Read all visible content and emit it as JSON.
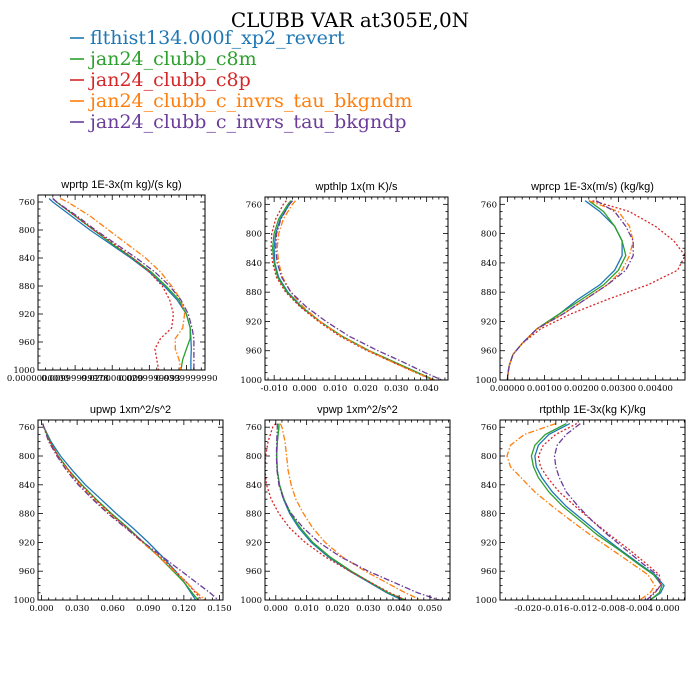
{
  "figure": {
    "title": "CLUBB VAR at305E,0N",
    "legend": [
      {
        "label": "flthist134.000f_xp2_revert",
        "color": "#1f77b4",
        "dash": "solid"
      },
      {
        "label": "jan24_clubb_c8m",
        "color": "#2ca02c",
        "dash": "solid"
      },
      {
        "label": "jan24_clubb_c8p",
        "color": "#d62728",
        "dash": "dotted"
      },
      {
        "label": "jan24_clubb_c_invrs_tau_bkgndm",
        "color": "#ff7f0e",
        "dash": "dashdot"
      },
      {
        "label": "jan24_clubb_c_invrs_tau_bkgndp",
        "color": "#6a3d9a",
        "dash": "dashdot"
      }
    ]
  },
  "chart_data": [
    {
      "type": "line",
      "title": "wprtp   1E-3x(m kg)/(s kg)",
      "xlim": [
        0.0,
        0.045
      ],
      "ylim": [
        750,
        1000
      ],
      "y_inverted": true,
      "xtick_values": [
        0.0,
        0.01,
        0.02,
        0.03,
        0.04
      ],
      "xtick_labels": [
        "0.0000000000",
        "0.00999999978",
        "0.0200000000",
        "0.0299999993",
        "0.0399999990"
      ],
      "ytick_values": [
        760,
        800,
        840,
        880,
        920,
        960,
        1000
      ],
      "ytick_labels": [
        "760",
        "800",
        "840",
        "880",
        "920",
        "960",
        "1000"
      ],
      "y": [
        755,
        760,
        780,
        800,
        820,
        840,
        860,
        880,
        900,
        920,
        940,
        955,
        970,
        985,
        1000
      ],
      "series": [
        {
          "values": [
            0.003,
            0.004,
            0.009,
            0.014,
            0.0195,
            0.025,
            0.03,
            0.034,
            0.0375,
            0.04,
            0.041,
            0.0412,
            0.0413,
            0.0412,
            0.0412
          ]
        },
        {
          "values": [
            0.004,
            0.005,
            0.01,
            0.015,
            0.02,
            0.0255,
            0.0305,
            0.0345,
            0.038,
            0.04,
            0.041,
            0.041,
            0.04,
            0.039,
            0.0385
          ]
        },
        {
          "values": [
            0.004,
            0.005,
            0.01,
            0.015,
            0.0205,
            0.0255,
            0.03,
            0.0335,
            0.0355,
            0.0365,
            0.036,
            0.033,
            0.0315,
            0.032,
            0.0325
          ]
        },
        {
          "values": [
            0.006,
            0.008,
            0.014,
            0.019,
            0.024,
            0.029,
            0.033,
            0.036,
            0.0385,
            0.0395,
            0.039,
            0.037,
            0.037,
            0.038,
            0.0385
          ]
        },
        {
          "values": [
            0.004,
            0.005,
            0.0105,
            0.0155,
            0.021,
            0.0265,
            0.0315,
            0.0355,
            0.0385,
            0.0405,
            0.0415,
            0.042,
            0.042,
            0.042,
            0.042
          ]
        }
      ]
    },
    {
      "type": "line",
      "title": "wpthlp   1x(m K)/s",
      "xlim": [
        -0.013,
        0.047
      ],
      "ylim": [
        750,
        1000
      ],
      "y_inverted": true,
      "xtick_values": [
        -0.01,
        0.0,
        0.01,
        0.02,
        0.03,
        0.04
      ],
      "xtick_labels": [
        "-0.010",
        "0.000",
        "0.010",
        "0.020",
        "0.030",
        "0.040"
      ],
      "ytick_values": [
        760,
        800,
        840,
        880,
        920,
        960,
        1000
      ],
      "ytick_labels": [
        "760",
        "800",
        "840",
        "880",
        "920",
        "960",
        "1000"
      ],
      "y": [
        755,
        760,
        780,
        800,
        820,
        840,
        860,
        880,
        900,
        920,
        940,
        960,
        975,
        990,
        1000
      ],
      "series": [
        {
          "values": [
            -0.004,
            -0.005,
            -0.008,
            -0.0095,
            -0.01,
            -0.0098,
            -0.0085,
            -0.0055,
            -0.001,
            0.005,
            0.012,
            0.021,
            0.029,
            0.037,
            0.042
          ]
        },
        {
          "values": [
            -0.0045,
            -0.0055,
            -0.0085,
            -0.01,
            -0.0105,
            -0.01,
            -0.0088,
            -0.0058,
            -0.0012,
            0.005,
            0.0122,
            0.0212,
            0.0292,
            0.0372,
            0.0425
          ]
        },
        {
          "values": [
            -0.006,
            -0.007,
            -0.0095,
            -0.0108,
            -0.011,
            -0.0105,
            -0.0092,
            -0.0062,
            -0.0015,
            0.0045,
            0.0115,
            0.0205,
            0.0285,
            0.0365,
            0.042
          ]
        },
        {
          "values": [
            -0.003,
            -0.004,
            -0.007,
            -0.0085,
            -0.009,
            -0.0085,
            -0.0072,
            -0.0045,
            -0.0005,
            0.005,
            0.012,
            0.021,
            0.0285,
            0.0365,
            0.0425
          ]
        },
        {
          "values": [
            -0.004,
            -0.005,
            -0.0078,
            -0.0092,
            -0.0095,
            -0.009,
            -0.0075,
            -0.0045,
            0.0005,
            0.007,
            0.0145,
            0.024,
            0.032,
            0.0395,
            0.045
          ]
        }
      ]
    },
    {
      "type": "line",
      "title": "wprcp   1E-3x(m/s) (kg/kg)",
      "xlim": [
        -0.0002,
        0.0048
      ],
      "ylim": [
        750,
        1000
      ],
      "y_inverted": true,
      "xtick_values": [
        0.0,
        0.001,
        0.002,
        0.003,
        0.004
      ],
      "xtick_labels": [
        "0.00000",
        "0.00100",
        "0.00200",
        "0.00300",
        "0.00400"
      ],
      "ytick_values": [
        760,
        800,
        840,
        880,
        920,
        960,
        1000
      ],
      "ytick_labels": [
        "760",
        "800",
        "840",
        "880",
        "920",
        "960",
        "1000"
      ],
      "y": [
        755,
        770,
        790,
        810,
        830,
        850,
        870,
        890,
        910,
        930,
        950,
        965,
        980,
        990,
        1000
      ],
      "series": [
        {
          "values": [
            0.0021,
            0.0025,
            0.0029,
            0.0031,
            0.0031,
            0.0029,
            0.0025,
            0.0019,
            0.0014,
            0.0008,
            0.0004,
            0.00015,
            5e-05,
            2e-05,
            0.0
          ]
        },
        {
          "values": [
            0.0022,
            0.0026,
            0.0029,
            0.0031,
            0.0032,
            0.003,
            0.0026,
            0.002,
            0.0014,
            0.0008,
            0.0004,
            0.00015,
            5e-05,
            2e-05,
            0.0
          ]
        },
        {
          "values": [
            0.0023,
            0.0033,
            0.004,
            0.0045,
            0.0048,
            0.0046,
            0.0038,
            0.0027,
            0.0017,
            0.0009,
            0.0004,
            0.00015,
            5e-05,
            2e-05,
            0.0
          ]
        },
        {
          "values": [
            0.0022,
            0.003,
            0.0033,
            0.0034,
            0.0033,
            0.0031,
            0.0027,
            0.0021,
            0.0015,
            0.0008,
            0.0004,
            0.00015,
            5e-05,
            2e-05,
            0.0
          ]
        },
        {
          "values": [
            0.0024,
            0.0029,
            0.0032,
            0.0034,
            0.0034,
            0.0032,
            0.0027,
            0.0021,
            0.0015,
            0.0008,
            0.0004,
            0.00015,
            5e-05,
            2e-05,
            0.0
          ]
        }
      ]
    },
    {
      "type": "line",
      "title": "upwp   1xm^2/s^2",
      "xlim": [
        -0.003,
        0.153
      ],
      "ylim": [
        750,
        1000
      ],
      "y_inverted": true,
      "xtick_values": [
        0.0,
        0.03,
        0.06,
        0.09,
        0.12,
        0.15
      ],
      "xtick_labels": [
        "0.000",
        "0.030",
        "0.060",
        "0.090",
        "0.120",
        "0.150"
      ],
      "ytick_values": [
        760,
        800,
        840,
        880,
        920,
        960,
        1000
      ],
      "ytick_labels": [
        "760",
        "800",
        "840",
        "880",
        "920",
        "960",
        "1000"
      ],
      "y": [
        755,
        760,
        780,
        800,
        820,
        840,
        860,
        880,
        900,
        920,
        940,
        960,
        975,
        990,
        1000
      ],
      "series": [
        {
          "values": [
            0.001,
            0.002,
            0.008,
            0.016,
            0.026,
            0.037,
            0.05,
            0.063,
            0.077,
            0.09,
            0.102,
            0.113,
            0.12,
            0.126,
            0.13
          ]
        },
        {
          "values": [
            0.001,
            0.002,
            0.007,
            0.014,
            0.023,
            0.034,
            0.046,
            0.059,
            0.073,
            0.086,
            0.099,
            0.111,
            0.12,
            0.127,
            0.132
          ]
        },
        {
          "values": [
            0.001,
            0.002,
            0.007,
            0.014,
            0.023,
            0.033,
            0.045,
            0.058,
            0.072,
            0.086,
            0.1,
            0.113,
            0.122,
            0.13,
            0.135
          ]
        },
        {
          "values": [
            0.001,
            0.002,
            0.006,
            0.013,
            0.022,
            0.032,
            0.044,
            0.057,
            0.071,
            0.085,
            0.099,
            0.112,
            0.122,
            0.131,
            0.138
          ]
        },
        {
          "values": [
            0.001,
            0.002,
            0.006,
            0.013,
            0.021,
            0.031,
            0.043,
            0.056,
            0.071,
            0.086,
            0.102,
            0.118,
            0.13,
            0.142,
            0.149
          ]
        }
      ]
    },
    {
      "type": "line",
      "title": "vpwp   1xm^2/s^2",
      "xlim": [
        -0.0035,
        0.0565
      ],
      "ylim": [
        750,
        1000
      ],
      "y_inverted": true,
      "xtick_values": [
        0.0,
        0.01,
        0.02,
        0.03,
        0.04,
        0.05
      ],
      "xtick_labels": [
        "0.000",
        "0.010",
        "0.020",
        "0.030",
        "0.040",
        "0.050"
      ],
      "ytick_values": [
        760,
        800,
        840,
        880,
        920,
        960,
        1000
      ],
      "ytick_labels": [
        "760",
        "800",
        "840",
        "880",
        "920",
        "960",
        "1000"
      ],
      "y": [
        755,
        760,
        780,
        800,
        820,
        840,
        860,
        880,
        900,
        920,
        940,
        960,
        975,
        990,
        1000
      ],
      "series": [
        {
          "values": [
            0.001,
            0.001,
            0.0005,
            0.0003,
            0.0005,
            0.0012,
            0.0025,
            0.0045,
            0.0075,
            0.0115,
            0.017,
            0.024,
            0.03,
            0.036,
            0.041
          ]
        },
        {
          "values": [
            0.001,
            0.001,
            0.0005,
            0.0003,
            0.0005,
            0.0012,
            0.0027,
            0.0048,
            0.008,
            0.012,
            0.0175,
            0.0245,
            0.0305,
            0.0365,
            0.042
          ]
        },
        {
          "values": [
            0.0,
            -0.001,
            -0.0025,
            -0.0033,
            -0.0035,
            -0.003,
            -0.0015,
            0.001,
            0.0045,
            0.0095,
            0.016,
            0.024,
            0.0305,
            0.037,
            0.042
          ]
        },
        {
          "values": [
            0.0015,
            0.002,
            0.003,
            0.0035,
            0.004,
            0.005,
            0.0065,
            0.009,
            0.012,
            0.016,
            0.0215,
            0.029,
            0.0355,
            0.042,
            0.047
          ]
        },
        {
          "values": [
            0.0005,
            0.0005,
            0.0003,
            0.0002,
            0.0004,
            0.001,
            0.0025,
            0.005,
            0.009,
            0.014,
            0.021,
            0.03,
            0.038,
            0.046,
            0.053
          ]
        }
      ]
    },
    {
      "type": "line",
      "title": "rtpthlp   1E-3x(kg K)/kg",
      "xlim": [
        -0.024,
        0.0025
      ],
      "ylim": [
        750,
        1000
      ],
      "y_inverted": true,
      "xtick_values": [
        -0.02,
        -0.016,
        -0.012,
        -0.008,
        -0.004,
        0.0
      ],
      "xtick_labels": [
        "-0.020",
        "-0.016",
        "-0.012",
        "-0.008",
        "-0.004",
        "0.000"
      ],
      "ytick_values": [
        760,
        800,
        840,
        880,
        920,
        960,
        1000
      ],
      "ytick_labels": [
        "760",
        "800",
        "840",
        "880",
        "920",
        "960",
        "1000"
      ],
      "y": [
        755,
        770,
        785,
        800,
        815,
        830,
        850,
        870,
        890,
        910,
        930,
        950,
        965,
        980,
        990,
        1000
      ],
      "series": [
        {
          "values": [
            -0.014,
            -0.017,
            -0.0185,
            -0.019,
            -0.0188,
            -0.018,
            -0.0165,
            -0.0145,
            -0.012,
            -0.0095,
            -0.0068,
            -0.004,
            -0.0018,
            -0.0005,
            -0.001,
            -0.0025
          ]
        },
        {
          "values": [
            -0.0145,
            -0.0175,
            -0.019,
            -0.0195,
            -0.0192,
            -0.0185,
            -0.017,
            -0.015,
            -0.0125,
            -0.01,
            -0.007,
            -0.0042,
            -0.002,
            -0.0008,
            -0.0012,
            -0.0025
          ]
        },
        {
          "values": [
            -0.013,
            -0.016,
            -0.0178,
            -0.0185,
            -0.0182,
            -0.0172,
            -0.0155,
            -0.0132,
            -0.0108,
            -0.0082,
            -0.0055,
            -0.003,
            -0.0012,
            -0.001,
            -0.002,
            -0.003
          ]
        },
        {
          "values": [
            -0.016,
            -0.0205,
            -0.0225,
            -0.023,
            -0.0225,
            -0.021,
            -0.019,
            -0.0165,
            -0.0138,
            -0.011,
            -0.008,
            -0.005,
            -0.0028,
            -0.0018,
            -0.0025,
            -0.004
          ]
        },
        {
          "values": [
            -0.0125,
            -0.0145,
            -0.0158,
            -0.0162,
            -0.016,
            -0.0155,
            -0.0145,
            -0.0128,
            -0.0108,
            -0.0085,
            -0.006,
            -0.0035,
            -0.0015,
            -0.001,
            -0.0018,
            -0.003
          ]
        }
      ]
    }
  ]
}
